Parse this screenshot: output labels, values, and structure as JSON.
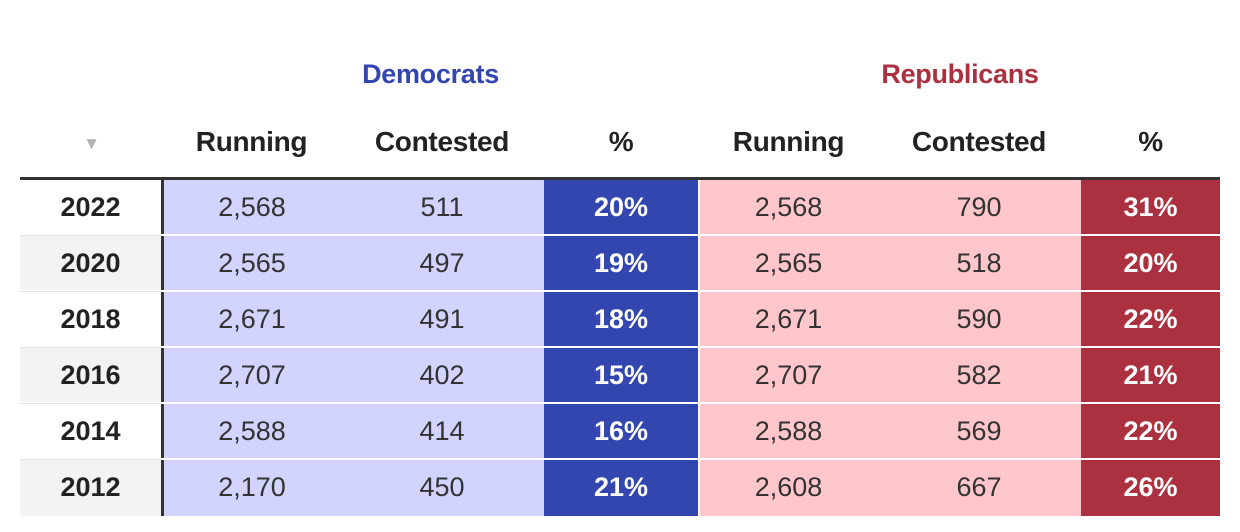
{
  "header": {
    "dem_label": "Democrats",
    "rep_label": "Republicans",
    "sort_icon": "▼",
    "columns": [
      "Running",
      "Contested",
      "%",
      "Running",
      "Contested",
      "%"
    ]
  },
  "colors": {
    "dem_accent": "#3346b0",
    "dem_light": "#d2d4ff",
    "rep_accent": "#ab3040",
    "rep_light": "#ffc7cc"
  },
  "rows": [
    {
      "year": "2022",
      "dem_running": "2,568",
      "dem_contested": "511",
      "dem_pct": "20%",
      "rep_running": "2,568",
      "rep_contested": "790",
      "rep_pct": "31%"
    },
    {
      "year": "2020",
      "dem_running": "2,565",
      "dem_contested": "497",
      "dem_pct": "19%",
      "rep_running": "2,565",
      "rep_contested": "518",
      "rep_pct": "20%"
    },
    {
      "year": "2018",
      "dem_running": "2,671",
      "dem_contested": "491",
      "dem_pct": "18%",
      "rep_running": "2,671",
      "rep_contested": "590",
      "rep_pct": "22%"
    },
    {
      "year": "2016",
      "dem_running": "2,707",
      "dem_contested": "402",
      "dem_pct": "15%",
      "rep_running": "2,707",
      "rep_contested": "582",
      "rep_pct": "21%"
    },
    {
      "year": "2014",
      "dem_running": "2,588",
      "dem_contested": "414",
      "dem_pct": "16%",
      "rep_running": "2,588",
      "rep_contested": "569",
      "rep_pct": "22%"
    },
    {
      "year": "2012",
      "dem_running": "2,170",
      "dem_contested": "450",
      "dem_pct": "21%",
      "rep_running": "2,608",
      "rep_contested": "667",
      "rep_pct": "26%"
    }
  ]
}
